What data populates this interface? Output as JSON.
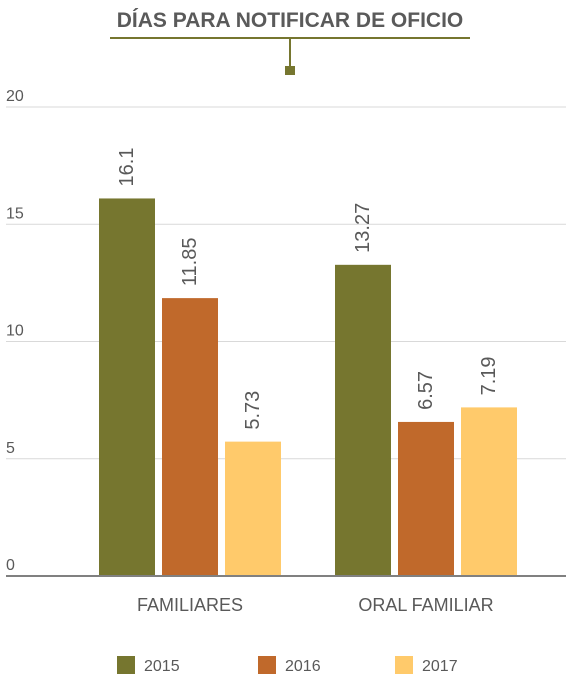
{
  "chart_data": {
    "type": "bar",
    "title": "DÍAS PARA NOTIFICAR DE OFICIO",
    "categories": [
      "FAMILIARES",
      "ORAL FAMILIAR"
    ],
    "series": [
      {
        "name": "2015",
        "color": "#76762f",
        "values": [
          16.1,
          13.27
        ],
        "labels": [
          "16.1",
          "13.27"
        ]
      },
      {
        "name": "2016",
        "color": "#c0692b",
        "values": [
          11.85,
          6.57
        ],
        "labels": [
          "11.85",
          "6.57"
        ]
      },
      {
        "name": "2017",
        "color": "#ffca6b",
        "values": [
          5.73,
          7.19
        ],
        "labels": [
          "5.73",
          "7.19"
        ]
      }
    ],
    "y_ticks": [
      "0",
      "5",
      "10",
      "15",
      "20"
    ],
    "ylim": [
      0,
      20
    ],
    "xlabel": "",
    "ylabel": "",
    "grid": true,
    "legend_position": "bottom",
    "colors": {
      "title": "#5a5a5a",
      "accent": "#76762f",
      "axis": "#808080",
      "grid": "#d9d9d9",
      "text": "#595959"
    }
  }
}
